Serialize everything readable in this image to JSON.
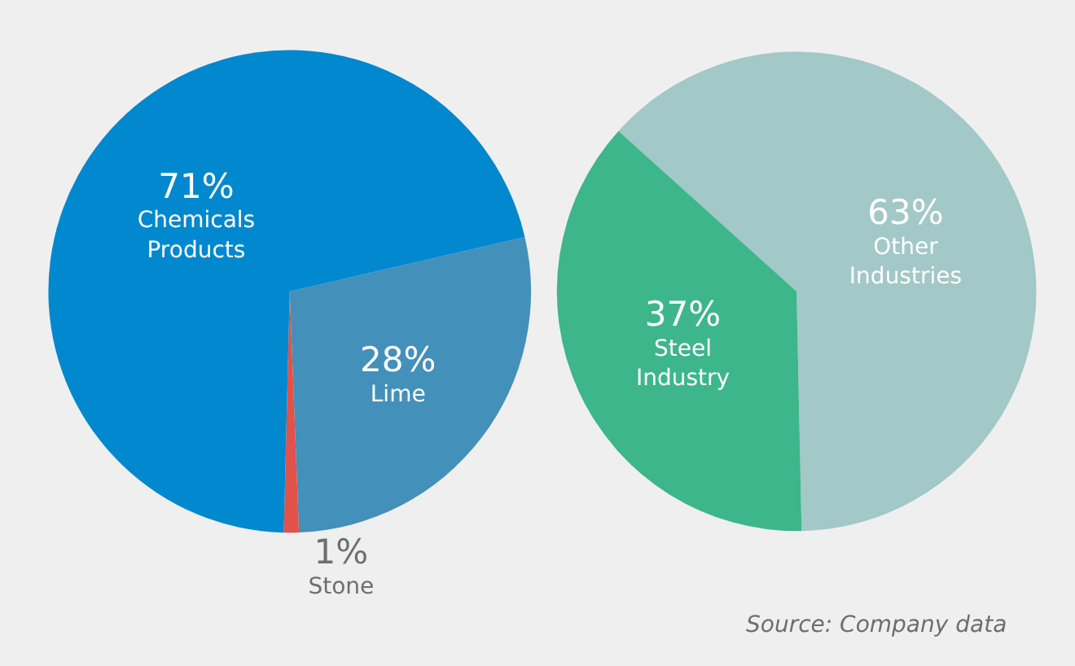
{
  "chart_data": [
    {
      "type": "pie",
      "categories": [
        "Lime",
        "Stone",
        "Chemicals Products"
      ],
      "values": [
        28,
        1,
        71
      ],
      "colors": [
        "#4390ba",
        "#e0524a",
        "#0288cf"
      ],
      "value_labels": [
        "28%",
        "1%",
        "71%"
      ],
      "legend": false
    },
    {
      "type": "pie",
      "categories": [
        "Other Industries",
        "Steel Industry"
      ],
      "values": [
        63,
        37
      ],
      "colors": [
        "#a2c8c7",
        "#3db68c"
      ],
      "value_labels": [
        "63%",
        "37%"
      ],
      "legend": false,
      "annotations": [
        "Source: Company data"
      ]
    }
  ]
}
